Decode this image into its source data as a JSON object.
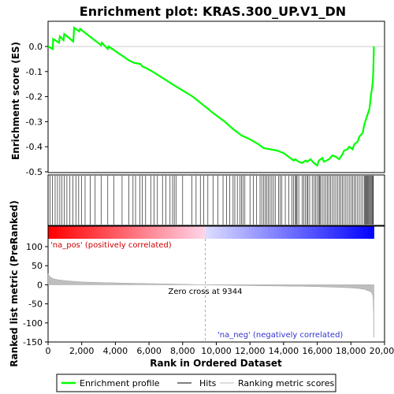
{
  "chart_data": {
    "type": "line",
    "title": "Enrichment plot: KRAS.300_UP.V1_DN",
    "top_panel": {
      "ylabel": "Enrichment score (ES)",
      "ylim": [
        -0.5,
        0.1
      ],
      "yticks": [
        -0.5,
        -0.4,
        -0.3,
        -0.2,
        -0.1,
        0.0
      ],
      "ytick_labels": [
        "-0.5",
        "-0.4",
        "-0.3",
        "-0.2",
        "-0.1",
        "0.0"
      ],
      "series": [
        {
          "name": "Enrichment profile",
          "color": "#00ff00",
          "x": [
            0,
            280,
            300,
            650,
            700,
            920,
            960,
            1500,
            1550,
            1850,
            1900,
            3150,
            3200,
            3550,
            3600,
            4800,
            5100,
            5500,
            5600,
            5800,
            6200,
            6800,
            7500,
            8600,
            9344,
            9800,
            10500,
            11000,
            11500,
            12000,
            12500,
            12800,
            13200,
            13600,
            13800,
            14000,
            14600,
            14700,
            14900,
            15100,
            15300,
            15400,
            15600,
            15800,
            16000,
            16100,
            16300,
            16400,
            16700,
            16900,
            17100,
            17300,
            17500,
            17600,
            17800,
            17900,
            18100,
            18200,
            18400,
            18500,
            18700,
            18800,
            18900,
            19000,
            19100,
            19150,
            19200,
            19250,
            19300,
            19330,
            19350,
            19370
          ],
          "y": [
            0.0,
            -0.01,
            0.03,
            0.015,
            0.04,
            0.025,
            0.05,
            0.02,
            0.075,
            0.06,
            0.07,
            0.005,
            0.015,
            -0.01,
            0.0,
            -0.055,
            -0.065,
            -0.07,
            -0.08,
            -0.085,
            -0.1,
            -0.125,
            -0.155,
            -0.2,
            -0.24,
            -0.265,
            -0.3,
            -0.33,
            -0.355,
            -0.37,
            -0.39,
            -0.405,
            -0.41,
            -0.415,
            -0.42,
            -0.425,
            -0.455,
            -0.45,
            -0.46,
            -0.465,
            -0.455,
            -0.46,
            -0.45,
            -0.465,
            -0.475,
            -0.455,
            -0.445,
            -0.46,
            -0.45,
            -0.435,
            -0.44,
            -0.45,
            -0.43,
            -0.415,
            -0.41,
            -0.4,
            -0.41,
            -0.39,
            -0.38,
            -0.36,
            -0.345,
            -0.31,
            -0.29,
            -0.27,
            -0.25,
            -0.22,
            -0.19,
            -0.17,
            -0.14,
            -0.1,
            -0.05,
            0.0
          ]
        }
      ],
      "hits": [
        120,
        250,
        420,
        560,
        700,
        830,
        960,
        1120,
        1300,
        1480,
        1650,
        1820,
        2000,
        2200,
        2500,
        2800,
        3150,
        3550,
        3900,
        4400,
        4800,
        5050,
        5200,
        5450,
        5600,
        5800,
        6100,
        6300,
        6500,
        6800,
        7000,
        7250,
        7400,
        7500,
        7600,
        8000,
        8550,
        8800,
        9050,
        9250,
        9500,
        9800,
        10100,
        10400,
        10600,
        10800,
        11000,
        11100,
        11250,
        11400,
        11500,
        11600,
        11700,
        12000,
        12200,
        12400,
        12600,
        12700,
        12800,
        12900,
        13000,
        13100,
        13200,
        13300,
        13400,
        13500,
        13700,
        13800,
        13900,
        14100,
        14300,
        14500,
        14600,
        14700,
        14750,
        14800,
        14900,
        15100,
        15200,
        15300,
        15400,
        15450,
        15550,
        15700,
        15800,
        15900,
        16000,
        16100,
        16150,
        16200,
        16300,
        16400,
        16500,
        16600,
        16700,
        16800,
        16900,
        17000,
        17100,
        17200,
        17300,
        17400,
        17500,
        17600,
        17700,
        17800,
        17900,
        18000,
        18100,
        18200,
        18300,
        18400,
        18500,
        18600,
        18700,
        18800,
        18850,
        18900,
        18950,
        19000,
        19050,
        19100,
        19150,
        19200,
        19250,
        19300,
        19330
      ]
    },
    "bottom_panel": {
      "ylabel": "Ranked list metric (PreRanked)",
      "xlabel": "Rank in Ordered Dataset",
      "xlim": [
        0,
        20000
      ],
      "ylim": [
        -150,
        125
      ],
      "xticks": [
        0,
        2000,
        4000,
        6000,
        8000,
        10000,
        12000,
        14000,
        16000,
        18000,
        20000
      ],
      "xtick_labels": [
        "0",
        "2,000",
        "4,000",
        "6,000",
        "8,000",
        "10,000",
        "12,000",
        "14,000",
        "16,000",
        "18,000",
        "20,000"
      ],
      "yticks": [
        -150,
        -100,
        -50,
        0,
        50,
        100
      ],
      "ytick_labels": [
        "-150",
        "-100",
        "-50",
        "0",
        "50",
        "100"
      ],
      "metric_curve": {
        "x": [
          0,
          50,
          150,
          300,
          600,
          1000,
          1500,
          2000,
          3000,
          4000,
          5000,
          6000,
          7000,
          8000,
          9344,
          10500,
          12000,
          13500,
          15000,
          16000,
          16800,
          17500,
          18000,
          18500,
          18800,
          19000,
          19150,
          19250,
          19300,
          19330,
          19350,
          19370
        ],
        "y": [
          30,
          25,
          20,
          16,
          13,
          11,
          9,
          7.5,
          6,
          5,
          4,
          3,
          2.2,
          1.5,
          0,
          -1,
          -2,
          -3,
          -4,
          -5,
          -6,
          -7,
          -8,
          -10,
          -12,
          -15,
          -18,
          -22,
          -28,
          -40,
          -80,
          -138
        ]
      },
      "zero_cross_label": "Zero cross at 9344",
      "zero_cross": 9344,
      "pos_label": "'na_pos' (positively correlated)",
      "neg_label": "'na_neg' (negatively correlated)"
    },
    "legend": {
      "placement": "bottom",
      "entries": [
        {
          "label": "Enrichment profile",
          "color": "#00ff00"
        },
        {
          "label": "Hits",
          "color": "#000000"
        },
        {
          "label": "Ranking metric scores",
          "color": "#bebebe"
        }
      ]
    }
  }
}
